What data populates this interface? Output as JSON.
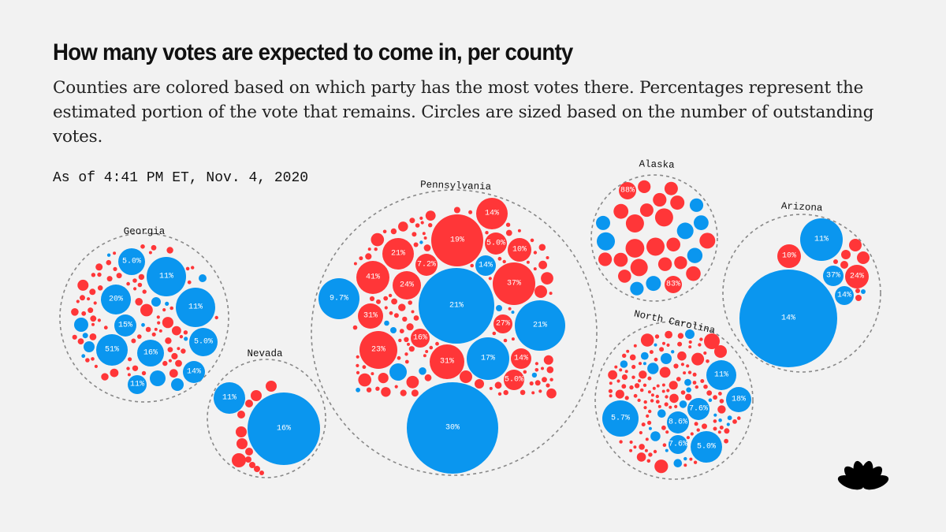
{
  "title": "How many votes are expected to come in, per county",
  "subtitle": "Counties are colored based on which party has the most votes there. Percentages represent the estimated portion of the vote that remains. Circles are sized based on the number of outstanding votes.",
  "timestamp": "As of 4:41 PM ET, Nov. 4, 2020",
  "colors": {
    "rep": "#ff3638",
    "dem": "#0a96ef",
    "background": "#f2f2f2"
  },
  "logo": "NBC peacock",
  "chart_data": {
    "type": "packed-bubble",
    "title": "How many votes are expected to come in, per county",
    "size_encodes": "outstanding votes",
    "label_encodes": "estimated portion of vote remaining",
    "states": [
      {
        "name": "Georgia",
        "labeled_counties": [
          {
            "label": "5.0%",
            "party": "dem"
          },
          {
            "label": "11%",
            "party": "dem"
          },
          {
            "label": "20%",
            "party": "dem"
          },
          {
            "label": "11%",
            "party": "dem"
          },
          {
            "label": "15%",
            "party": "dem"
          },
          {
            "label": "5.0%",
            "party": "dem"
          },
          {
            "label": "51%",
            "party": "dem"
          },
          {
            "label": "16%",
            "party": "dem"
          },
          {
            "label": "14%",
            "party": "dem"
          },
          {
            "label": "11%",
            "party": "dem"
          }
        ]
      },
      {
        "name": "Nevada",
        "labeled_counties": [
          {
            "label": "11%",
            "party": "dem"
          },
          {
            "label": "16%",
            "party": "dem"
          }
        ]
      },
      {
        "name": "Pennsylvania",
        "labeled_counties": [
          {
            "label": "14%",
            "party": "rep"
          },
          {
            "label": "19%",
            "party": "rep"
          },
          {
            "label": "5.0%",
            "party": "rep"
          },
          {
            "label": "10%",
            "party": "rep"
          },
          {
            "label": "21%",
            "party": "rep"
          },
          {
            "label": "7.2%",
            "party": "rep"
          },
          {
            "label": "14%",
            "party": "dem"
          },
          {
            "label": "41%",
            "party": "rep"
          },
          {
            "label": "24%",
            "party": "rep"
          },
          {
            "label": "37%",
            "party": "rep"
          },
          {
            "label": "9.7%",
            "party": "dem"
          },
          {
            "label": "21%",
            "party": "dem"
          },
          {
            "label": "21%",
            "party": "dem"
          },
          {
            "label": "27%",
            "party": "rep"
          },
          {
            "label": "31%",
            "party": "rep"
          },
          {
            "label": "16%",
            "party": "rep"
          },
          {
            "label": "23%",
            "party": "rep"
          },
          {
            "label": "17%",
            "party": "dem"
          },
          {
            "label": "14%",
            "party": "rep"
          },
          {
            "label": "31%",
            "party": "rep"
          },
          {
            "label": "5.0%",
            "party": "rep"
          },
          {
            "label": "30%",
            "party": "dem"
          }
        ]
      },
      {
        "name": "Alaska",
        "labeled_counties": [
          {
            "label": "88%",
            "party": "rep"
          },
          {
            "label": "83%",
            "party": "rep"
          }
        ]
      },
      {
        "name": "Arizona",
        "labeled_counties": [
          {
            "label": "11%",
            "party": "dem"
          },
          {
            "label": "10%",
            "party": "rep"
          },
          {
            "label": "37%",
            "party": "dem"
          },
          {
            "label": "24%",
            "party": "rep"
          },
          {
            "label": "14%",
            "party": "dem"
          },
          {
            "label": "14%",
            "party": "dem"
          }
        ]
      },
      {
        "name": "North Carolina",
        "labeled_counties": [
          {
            "label": "11%",
            "party": "dem"
          },
          {
            "label": "18%",
            "party": "dem"
          },
          {
            "label": "5.7%",
            "party": "dem"
          },
          {
            "label": "7.6%",
            "party": "dem"
          },
          {
            "label": "8.6%",
            "party": "dem"
          },
          {
            "label": "7.6%",
            "party": "dem"
          },
          {
            "label": "5.0%",
            "party": "dem"
          }
        ]
      }
    ]
  }
}
